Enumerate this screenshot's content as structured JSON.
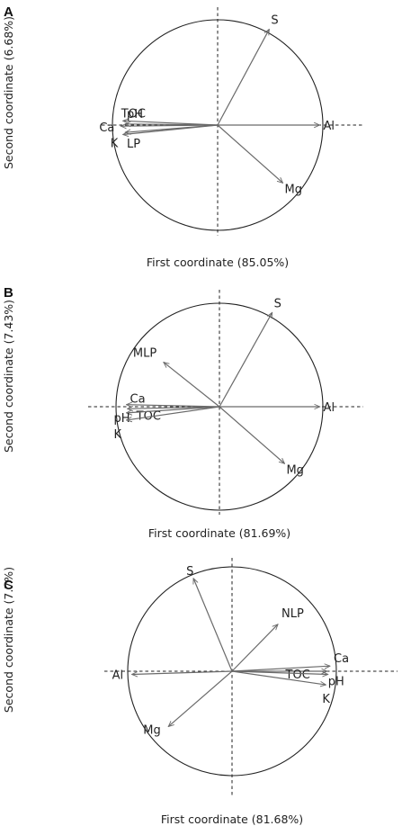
{
  "chart_data": [
    {
      "type": "scatter",
      "panel": "A",
      "xlabel": "First coordinate (85.05%)",
      "ylabel": "Second coordinate (6.68%)",
      "xlim": [
        -1.05,
        1.05
      ],
      "ylim": [
        -1.05,
        1.05
      ],
      "variables": [
        {
          "name": "S",
          "x": 0.49,
          "y": 0.91
        },
        {
          "name": "Al",
          "x": 0.97,
          "y": 0.0
        },
        {
          "name": "Mg",
          "x": 0.62,
          "y": -0.55
        },
        {
          "name": "TOC",
          "x": -0.9,
          "y": 0.04
        },
        {
          "name": "pH",
          "x": -0.88,
          "y": 0.01
        },
        {
          "name": "Ca",
          "x": -0.92,
          "y": -0.01
        },
        {
          "name": "K",
          "x": -0.9,
          "y": -0.09
        },
        {
          "name": "LP",
          "x": -0.88,
          "y": -0.07
        }
      ]
    },
    {
      "type": "scatter",
      "panel": "B",
      "xlabel": "First coordinate (81.69%)",
      "ylabel": "Second coordinate (7.43%)",
      "xlim": [
        -1.05,
        1.05
      ],
      "ylim": [
        -1.05,
        1.05
      ],
      "variables": [
        {
          "name": "S",
          "x": 0.51,
          "y": 0.91
        },
        {
          "name": "MLP",
          "x": -0.54,
          "y": 0.43
        },
        {
          "name": "Al",
          "x": 0.97,
          "y": 0.0
        },
        {
          "name": "Mg",
          "x": 0.63,
          "y": -0.55
        },
        {
          "name": "Ca",
          "x": -0.9,
          "y": 0.02
        },
        {
          "name": "TOC",
          "x": -0.89,
          "y": -0.02
        },
        {
          "name": "pH",
          "x": -0.9,
          "y": -0.06
        },
        {
          "name": "K",
          "x": -0.9,
          "y": -0.13
        }
      ]
    },
    {
      "type": "scatter",
      "panel": "C",
      "xlabel": "First coordinate (81.68%)",
      "ylabel": "Second coordinate (7.7%)",
      "xlim": [
        -1.05,
        1.05
      ],
      "ylim": [
        -1.05,
        1.05
      ],
      "variables": [
        {
          "name": "S",
          "x": -0.37,
          "y": 0.89
        },
        {
          "name": "NLP",
          "x": 0.44,
          "y": 0.45
        },
        {
          "name": "Al",
          "x": -0.96,
          "y": -0.03
        },
        {
          "name": "Mg",
          "x": -0.61,
          "y": -0.53
        },
        {
          "name": "Ca",
          "x": 0.94,
          "y": 0.05
        },
        {
          "name": "TOC",
          "x": 0.91,
          "y": 0.0
        },
        {
          "name": "pH",
          "x": 0.92,
          "y": -0.03
        },
        {
          "name": "K",
          "x": 0.9,
          "y": -0.13
        }
      ]
    }
  ]
}
